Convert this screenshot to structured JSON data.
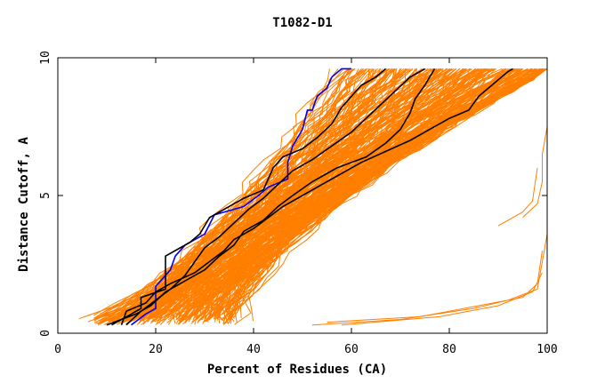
{
  "chart_data": {
    "type": "line",
    "title": "T1082-D1",
    "xlabel": "Percent of Residues (CA)",
    "ylabel": "Distance Cutoff, A",
    "xlim": [
      0,
      100
    ],
    "ylim": [
      0,
      10
    ],
    "x_ticks": [
      "0",
      "20",
      "40",
      "60",
      "80",
      "100"
    ],
    "y_ticks": [
      "0",
      "5",
      "10"
    ],
    "grid": false,
    "colors": {
      "orange": "#ff7f00",
      "blue": "#0000ff",
      "black": "#000000"
    },
    "series": [
      {
        "color": "blue",
        "points": [
          [
            15,
            0.3
          ],
          [
            18,
            0.7
          ],
          [
            20,
            0.9
          ],
          [
            20,
            1.7
          ],
          [
            23,
            2.3
          ],
          [
            24,
            2.8
          ],
          [
            26,
            3.2
          ],
          [
            30,
            3.6
          ],
          [
            32,
            4.3
          ],
          [
            34,
            4.4
          ],
          [
            38,
            4.6
          ],
          [
            41,
            5.0
          ],
          [
            43,
            5.3
          ],
          [
            47,
            5.6
          ],
          [
            47,
            6.2
          ],
          [
            48,
            6.8
          ],
          [
            50,
            7.4
          ],
          [
            51,
            8.1
          ],
          [
            52,
            8.1
          ],
          [
            53,
            8.6
          ],
          [
            55,
            8.9
          ],
          [
            56,
            9.3
          ],
          [
            58,
            9.6
          ],
          [
            60,
            9.6
          ]
        ]
      },
      {
        "color": "black",
        "points": [
          [
            11,
            0.3
          ],
          [
            14,
            0.6
          ],
          [
            17,
            0.9
          ],
          [
            17,
            1.3
          ],
          [
            22,
            1.6
          ],
          [
            22,
            2.8
          ],
          [
            24,
            3.0
          ],
          [
            27,
            3.3
          ],
          [
            29,
            3.6
          ],
          [
            31,
            4.2
          ],
          [
            34,
            4.5
          ],
          [
            38,
            4.9
          ],
          [
            42,
            5.2
          ],
          [
            44,
            6.0
          ],
          [
            46,
            6.4
          ],
          [
            50,
            6.7
          ],
          [
            53,
            7.1
          ],
          [
            56,
            7.6
          ],
          [
            58,
            8.2
          ],
          [
            60,
            8.6
          ],
          [
            62,
            9.0
          ],
          [
            65,
            9.3
          ],
          [
            67,
            9.6
          ]
        ]
      },
      {
        "color": "black",
        "points": [
          [
            13,
            0.3
          ],
          [
            14,
            0.8
          ],
          [
            18,
            1.1
          ],
          [
            20,
            1.5
          ],
          [
            23,
            1.8
          ],
          [
            28,
            2.2
          ],
          [
            31,
            2.6
          ],
          [
            34,
            3.0
          ],
          [
            36,
            3.4
          ],
          [
            40,
            3.8
          ],
          [
            43,
            4.2
          ],
          [
            46,
            4.6
          ],
          [
            50,
            5.0
          ],
          [
            54,
            5.4
          ],
          [
            58,
            5.8
          ],
          [
            62,
            6.2
          ],
          [
            67,
            6.6
          ],
          [
            72,
            7.0
          ],
          [
            76,
            7.4
          ],
          [
            80,
            7.8
          ],
          [
            84,
            8.1
          ],
          [
            86,
            8.6
          ],
          [
            88,
            8.9
          ],
          [
            90,
            9.2
          ],
          [
            92,
            9.5
          ],
          [
            93,
            9.6
          ]
        ]
      },
      {
        "color": "black",
        "points": [
          [
            10,
            0.3
          ],
          [
            16,
            0.7
          ],
          [
            19,
            1.0
          ],
          [
            22,
            1.5
          ],
          [
            26,
            1.9
          ],
          [
            30,
            2.3
          ],
          [
            33,
            2.8
          ],
          [
            36,
            3.2
          ],
          [
            38,
            3.7
          ],
          [
            42,
            4.1
          ],
          [
            45,
            4.6
          ],
          [
            48,
            5.0
          ],
          [
            52,
            5.5
          ],
          [
            57,
            6.0
          ],
          [
            63,
            6.4
          ],
          [
            67,
            6.9
          ],
          [
            70,
            7.4
          ],
          [
            72,
            8.0
          ],
          [
            73,
            8.5
          ],
          [
            75,
            9.0
          ],
          [
            76,
            9.3
          ],
          [
            77,
            9.6
          ]
        ]
      },
      {
        "color": "black",
        "points": [
          [
            14,
            0.3
          ],
          [
            17,
            0.8
          ],
          [
            20,
            1.2
          ],
          [
            23,
            1.6
          ],
          [
            26,
            2.1
          ],
          [
            28,
            2.6
          ],
          [
            30,
            3.1
          ],
          [
            33,
            3.5
          ],
          [
            36,
            4.0
          ],
          [
            39,
            4.5
          ],
          [
            42,
            4.9
          ],
          [
            45,
            5.4
          ],
          [
            48,
            5.9
          ],
          [
            52,
            6.3
          ],
          [
            56,
            6.8
          ],
          [
            60,
            7.3
          ],
          [
            63,
            7.8
          ],
          [
            66,
            8.3
          ],
          [
            69,
            8.8
          ],
          [
            72,
            9.3
          ],
          [
            75,
            9.6
          ]
        ]
      }
    ]
  }
}
